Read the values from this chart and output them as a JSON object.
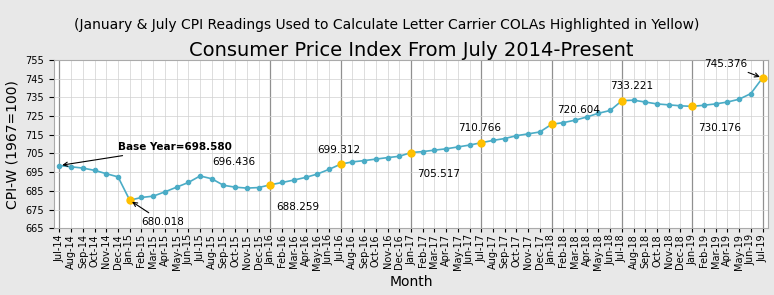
{
  "title": "Consumer Price Index From July 2014-Present",
  "subtitle": "(January & July CPI Readings Used to Calculate Letter Carrier COLAs Highlighted in Yellow)",
  "xlabel": "Month",
  "ylabel": "CPI-W (1967=100)",
  "ylim": [
    665,
    755
  ],
  "yticks": [
    665,
    675,
    685,
    695,
    705,
    715,
    725,
    735,
    745,
    755
  ],
  "background_color": "#e8e8e8",
  "plot_background": "#ffffff",
  "line_color": "#4bacc6",
  "marker_color_default": "#4bacc6",
  "marker_color_highlight": "#ffc000",
  "months": [
    "Jul-14",
    "Aug-14",
    "Sep-14",
    "Oct-14",
    "Nov-14",
    "Dec-14",
    "Jan-15",
    "Feb-15",
    "Mar-15",
    "Apr-15",
    "May-15",
    "Jun-15",
    "Jul-15",
    "Aug-15",
    "Sep-15",
    "Oct-15",
    "Nov-15",
    "Dec-15",
    "Jan-16",
    "Feb-16",
    "Mar-16",
    "Apr-16",
    "May-16",
    "Jun-16",
    "Jul-16",
    "Aug-16",
    "Sep-16",
    "Oct-16",
    "Nov-16",
    "Dec-16",
    "Jan-17",
    "Feb-17",
    "Mar-17",
    "Apr-17",
    "May-17",
    "Jun-17",
    "Jul-17",
    "Aug-17",
    "Sep-17",
    "Oct-17",
    "Nov-17",
    "Dec-17",
    "Jan-18",
    "Feb-18",
    "Mar-18",
    "Apr-18",
    "May-18",
    "Jun-18",
    "Jul-18",
    "Aug-18",
    "Sep-18",
    "Oct-18",
    "Nov-18",
    "Dec-18",
    "Jan-19",
    "Feb-19",
    "Mar-19",
    "Apr-19",
    "May-19",
    "Jun-19",
    "Jul-19"
  ],
  "values": [
    698.58,
    697.9,
    697.2,
    696.0,
    694.2,
    692.5,
    680.018,
    681.5,
    682.2,
    684.5,
    687.0,
    689.5,
    693.0,
    691.5,
    688.0,
    687.0,
    686.5,
    686.8,
    688.259,
    689.5,
    690.8,
    692.2,
    694.0,
    696.5,
    699.312,
    700.5,
    701.2,
    702.0,
    702.8,
    703.5,
    705.517,
    706.0,
    706.8,
    707.5,
    708.5,
    709.5,
    710.766,
    712.0,
    713.0,
    714.5,
    715.5,
    716.5,
    720.604,
    721.5,
    722.8,
    724.5,
    726.5,
    728.0,
    733.221,
    733.5,
    732.5,
    731.5,
    731.0,
    730.5,
    730.176,
    730.8,
    731.5,
    732.5,
    734.0,
    737.0,
    745.376
  ],
  "highlighted_indices": [
    6,
    18,
    24,
    30,
    36,
    42,
    48,
    54,
    60
  ],
  "vline_indices": [
    0,
    18,
    24,
    30,
    36,
    42,
    48,
    54,
    60
  ],
  "title_fontsize": 14,
  "subtitle_fontsize": 10,
  "axis_label_fontsize": 10,
  "tick_fontsize": 7,
  "annotation_fontsize": 7.5
}
